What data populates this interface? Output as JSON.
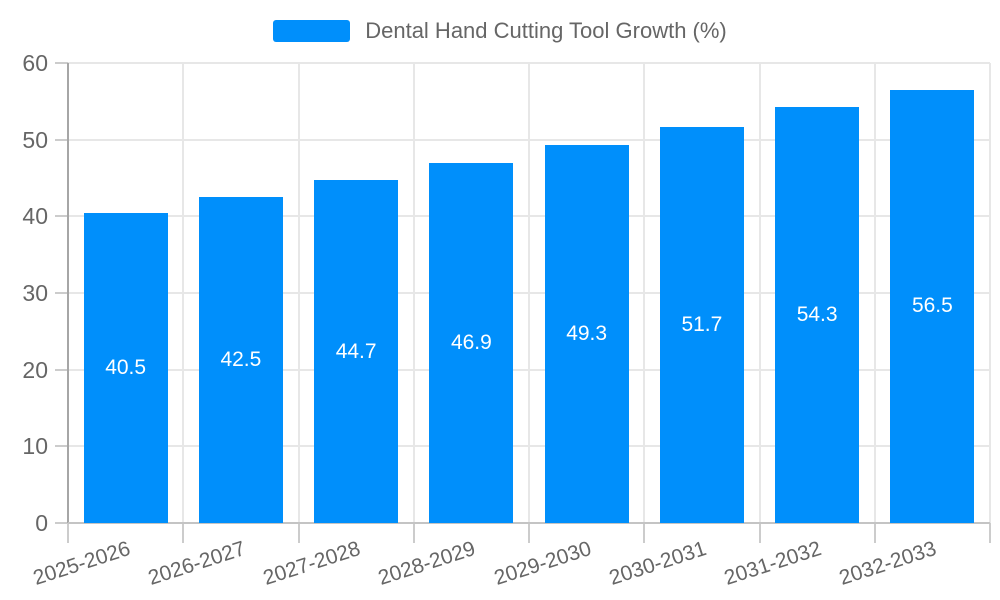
{
  "legend": {
    "label": "Dental Hand Cutting Tool Growth (%)"
  },
  "chart_data": {
    "type": "bar",
    "title": "Dental Hand Cutting Tool Growth (%)",
    "categories": [
      "2025-2026",
      "2026-2027",
      "2027-2028",
      "2028-2029",
      "2029-2030",
      "2030-2031",
      "2031-2032",
      "2032-2033"
    ],
    "values": [
      40.5,
      42.5,
      44.7,
      46.9,
      49.3,
      51.7,
      54.3,
      56.5
    ],
    "value_labels": [
      "40.5",
      "42.5",
      "44.7",
      "46.9",
      "49.3",
      "51.7",
      "54.3",
      "56.5"
    ],
    "yticks": [
      0,
      10,
      20,
      30,
      40,
      50,
      60
    ],
    "ylim": [
      0,
      60
    ],
    "xlabel": "",
    "ylabel": "",
    "grid": true,
    "legend_position": "top",
    "colors": {
      "bar": "#008FFB",
      "data_label": "#FFFFFF",
      "axis_text": "#666666",
      "legend_text": "#666666",
      "gridline": "#E7E7E7",
      "yaxis_line": "#A6A6A6",
      "xaxis_line": "#C4C4C4",
      "tick": "#CCCCCC",
      "background": "#FFFFFF"
    }
  }
}
